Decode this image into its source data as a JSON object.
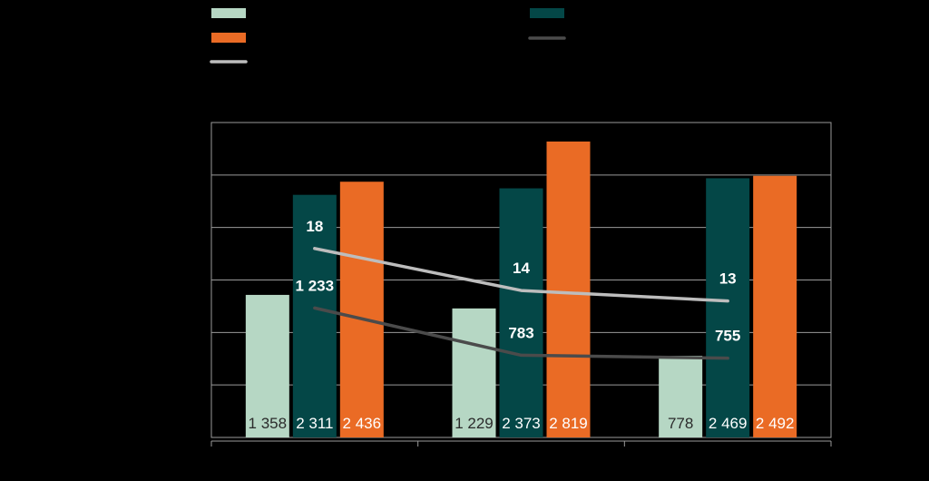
{
  "colors": {
    "background": "#000000",
    "plot_border": "#9a9a9a",
    "grid": "#9a9a9a",
    "bar_light": "#b6d7c4",
    "bar_dark": "#044747",
    "bar_orange": "#ea6b25",
    "line_light": "#bdbdbd",
    "line_dark": "#4b4b4b",
    "label_light_text": "#2b2b2b",
    "label_white_text": "#ffffff"
  },
  "chart_data": {
    "type": "bar",
    "categories": [
      "",
      "",
      ""
    ],
    "ylim": [
      0,
      3000
    ],
    "y_gridlines": [
      500,
      1000,
      1500,
      2000,
      2500
    ],
    "grid": true,
    "legend": "top",
    "series": [
      {
        "kind": "bar",
        "color_key": "bar_light",
        "values": [
          1358,
          1229,
          778
        ],
        "labels": [
          "1 358",
          "1 229",
          "778"
        ]
      },
      {
        "kind": "bar",
        "color_key": "bar_dark",
        "values": [
          2311,
          2373,
          2469
        ],
        "labels": [
          "2 311",
          "2 373",
          "2 469"
        ]
      },
      {
        "kind": "bar",
        "color_key": "bar_orange",
        "values": [
          2436,
          2819,
          2492
        ],
        "labels": [
          "2 436",
          "2 819",
          "2 492"
        ]
      },
      {
        "kind": "line",
        "color_key": "line_light",
        "values_on_axis": [
          1800,
          1400,
          1300
        ],
        "labels": [
          "18",
          "14",
          "13"
        ]
      },
      {
        "kind": "line",
        "color_key": "line_dark",
        "values": [
          1233,
          783,
          755
        ],
        "labels": [
          "1 233",
          "783",
          "755"
        ]
      }
    ]
  }
}
